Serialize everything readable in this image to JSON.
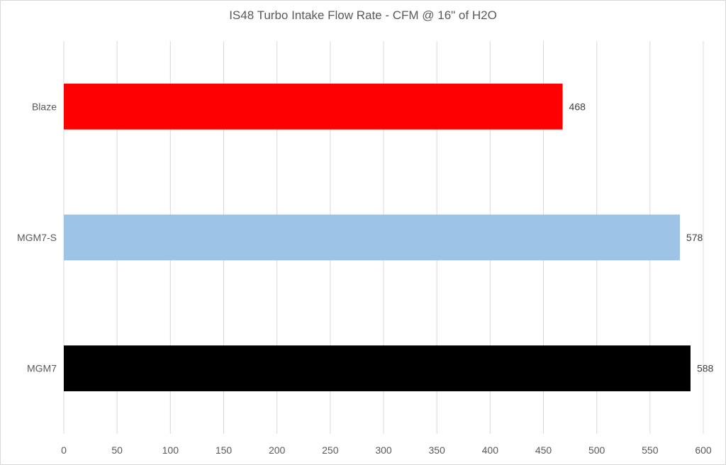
{
  "chart_data": {
    "type": "bar",
    "orientation": "horizontal",
    "title": "IS48 Turbo Intake Flow Rate - CFM @ 16\" of H2O",
    "categories": [
      "Blaze",
      "MGM7-S",
      "MGM7"
    ],
    "values": [
      468,
      578,
      588
    ],
    "colors": [
      "#ff0000",
      "#9dc3e6",
      "#000000"
    ],
    "xlim": [
      0,
      600
    ],
    "xticks": [
      0,
      50,
      100,
      150,
      200,
      250,
      300,
      350,
      400,
      450,
      500,
      550,
      600
    ],
    "xlabel": "",
    "ylabel": "",
    "grid": true,
    "legend": false,
    "data_labels": [
      "468",
      "578",
      "588"
    ]
  }
}
